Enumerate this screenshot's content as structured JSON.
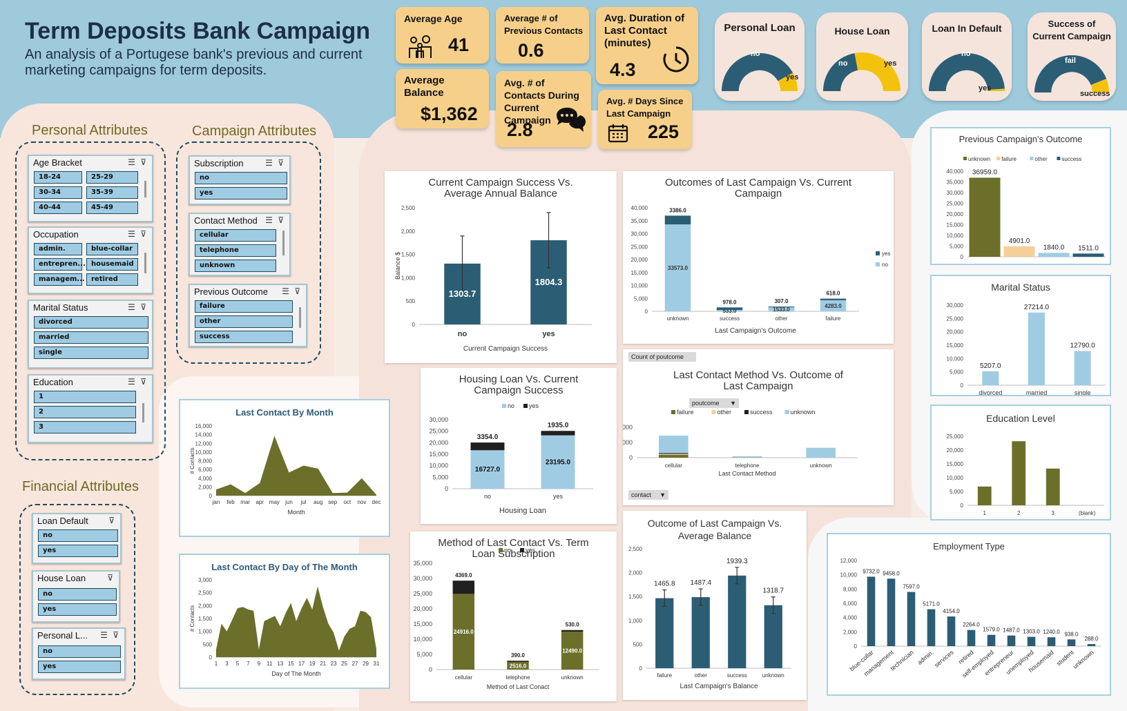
{
  "header": {
    "title": "Term Deposits Bank Campaign",
    "subtitle": "An analysis of a Portugese bank's previous and current marketing campaigns for term deposits."
  },
  "kpis": {
    "avg_age": {
      "label": "Average Age",
      "value": "41"
    },
    "avg_prev_contacts": {
      "label": "Average # of Previous Contacts",
      "value": "0.6"
    },
    "avg_duration": {
      "label": "Avg. Duration of Last Contact (minutes)",
      "value": "4.3"
    },
    "avg_balance": {
      "label": "Average Balance",
      "value": "$1,362"
    },
    "avg_contacts_current": {
      "label": "Avg. # of Contacts During Current Campaign",
      "value": "2.8"
    },
    "avg_days_since": {
      "label": "Avg. # Days Since Last Campaign",
      "value": "225"
    }
  },
  "gauges": [
    {
      "title": "Personal Loan",
      "left_label": "no",
      "right_label": "yes",
      "fraction": 0.16,
      "colors": [
        "#2b5e75",
        "#f4c20d"
      ]
    },
    {
      "title": "House Loan",
      "left_label": "no",
      "right_label": "yes",
      "fraction": 0.56,
      "colors": [
        "#2b5e75",
        "#f4c20d"
      ]
    },
    {
      "title": "Loan In Default",
      "left_label": "no",
      "right_label": "yes",
      "fraction": 0.02,
      "colors": [
        "#2b5e75",
        "#f4c20d"
      ]
    },
    {
      "title": "Success of Current Campaign",
      "left_label": "fail",
      "right_label": "success",
      "fraction": 0.12,
      "colors": [
        "#2b5e75",
        "#f4c20d"
      ]
    }
  ],
  "sections": {
    "personal": "Personal Attributes",
    "campaign": "Campaign Attributes",
    "financial": "Financial Attributes"
  },
  "slicers": {
    "age": {
      "title": "Age Bracket",
      "items": [
        "18-24",
        "25-29",
        "30-34",
        "35-39",
        "40-44",
        "45-49"
      ]
    },
    "occupation": {
      "title": "Occupation",
      "items": [
        "admin.",
        "blue-collar",
        "entrepren...",
        "housemaid",
        "managem...",
        "retired"
      ]
    },
    "marital": {
      "title": "Marital Status",
      "items": [
        "divorced",
        "married",
        "single"
      ]
    },
    "education": {
      "title": "Education",
      "items": [
        "1",
        "2",
        "3"
      ]
    },
    "subscription": {
      "title": "Subscription",
      "items": [
        "no",
        "yes"
      ]
    },
    "contact": {
      "title": "Contact Method",
      "items": [
        "cellular",
        "telephone",
        "unknown"
      ]
    },
    "prev_outcome": {
      "title": "Previous Outcome",
      "items": [
        "failure",
        "other",
        "success"
      ]
    },
    "loan_default": {
      "title": "Loan Default",
      "items": [
        "no",
        "yes"
      ]
    },
    "house_loan": {
      "title": "House Loan",
      "items": [
        "no",
        "yes"
      ]
    },
    "personal_loan": {
      "title": "Personal L...",
      "items": [
        "no",
        "yes"
      ]
    }
  },
  "pivot_buttons": {
    "count_field": "Count of poutcome",
    "filter_poutcome": "poutcome",
    "filter_contact": "contact"
  },
  "chart_data": [
    {
      "id": "balance_success",
      "type": "bar",
      "title": "Current Campaign Success Vs. Average Annual Balance",
      "xlabel": "Current Campaign Success",
      "ylabel": "Balance $",
      "categories": [
        "no",
        "yes"
      ],
      "values": [
        1303.7,
        1804.3
      ],
      "ylim": [
        0,
        2500
      ],
      "yticks": [
        "0",
        "500",
        "1,000",
        "1,500",
        "2,000",
        "2,500"
      ],
      "error_bars": true
    },
    {
      "id": "last_vs_current",
      "type": "bar",
      "title": "Outcomes of Last Campaign Vs. Current Campaign",
      "xlabel": "Last Campaign's Outcome",
      "categories": [
        "unknown",
        "success",
        "other",
        "failure"
      ],
      "series": [
        {
          "name": "no",
          "values": [
            33573,
            533,
            1533,
            4283
          ]
        },
        {
          "name": "yes",
          "values": [
            3386,
            978,
            307,
            618
          ]
        }
      ],
      "ylim": [
        0,
        40000
      ],
      "yticks": [
        "0",
        "5,000",
        "10,000",
        "15,000",
        "20,000",
        "25,000",
        "30,000",
        "35,000",
        "40,000"
      ],
      "legend": "right"
    },
    {
      "id": "housing",
      "type": "bar",
      "title": "Housing Loan Vs. Current Campaign Success",
      "xlabel": "Housing Loan",
      "categories": [
        "no",
        "yes"
      ],
      "series": [
        {
          "name": "no",
          "values": [
            16727,
            23195
          ]
        },
        {
          "name": "yes",
          "values": [
            3354,
            1935
          ]
        }
      ],
      "ylim": [
        0,
        30000
      ],
      "yticks": [
        "0",
        "5,000",
        "10,000",
        "15,000",
        "20,000",
        "25,000",
        "30,000"
      ],
      "legend": "top"
    },
    {
      "id": "contact_vs_outcome",
      "type": "bar",
      "title": "Last Contact Method Vs. Outcome of Last Campaign",
      "xlabel": "Last Contact Method",
      "categories": [
        "cellular",
        "telephone",
        "unknown"
      ],
      "series": [
        {
          "name": "failure",
          "values": [
            3700,
            300,
            0
          ]
        },
        {
          "name": "other",
          "values": [
            1200,
            200,
            0
          ]
        },
        {
          "name": "success",
          "values": [
            1100,
            100,
            0
          ]
        },
        {
          "name": "unknown",
          "values": [
            23000,
            1300,
            13000
          ]
        }
      ],
      "ylim": [
        0,
        40000
      ],
      "yticks": [
        "0",
        "20,000",
        "40,000"
      ],
      "legend": "top"
    },
    {
      "id": "method_subscription",
      "type": "bar",
      "title": "Method of Last Contact Vs. Term Loan Subscription",
      "xlabel": "Method of Last Conact",
      "categories": [
        "cellular",
        "telephone",
        "unknown"
      ],
      "series": [
        {
          "name": "no",
          "values": [
            24916,
            2516,
            12490
          ]
        },
        {
          "name": "yes",
          "values": [
            4369,
            390,
            530
          ]
        }
      ],
      "ylim": [
        0,
        35000
      ],
      "yticks": [
        "0",
        "5,000",
        "10,000",
        "15,000",
        "20,000",
        "25,000",
        "30,000",
        "35,000"
      ],
      "legend": "top"
    },
    {
      "id": "outcome_balance",
      "type": "bar",
      "title": "Outcome of Last Campaign Vs. Average Balance",
      "xlabel": "Last Campaign's Balance",
      "categories": [
        "failure",
        "other",
        "success",
        "unknown"
      ],
      "values": [
        1465.8,
        1487.4,
        1939.3,
        1318.7
      ],
      "ylim": [
        0,
        2500
      ],
      "yticks": [
        "0",
        "500",
        "1,000",
        "1,500",
        "2,000",
        "2,500"
      ],
      "error_bars": true
    },
    {
      "id": "by_month",
      "type": "area",
      "title": "Last Contact By Month",
      "xlabel": "Month",
      "ylabel": "# Contacts",
      "categories": [
        "jan",
        "feb",
        "mar",
        "apr",
        "may",
        "jun",
        "jul",
        "aug",
        "sep",
        "oct",
        "nov",
        "dec"
      ],
      "values": [
        1400,
        2600,
        600,
        2900,
        13700,
        5300,
        6900,
        6200,
        600,
        700,
        4000,
        200
      ],
      "ylim": [
        0,
        16000
      ],
      "yticks": [
        "0",
        "2,000",
        "4,000",
        "6,000",
        "8,000",
        "10,000",
        "12,000",
        "14,000",
        "16,000"
      ]
    },
    {
      "id": "by_day",
      "type": "area",
      "title": "Last Contact By Day of The Month",
      "xlabel": "Day of The Month",
      "ylabel": "# Contacts",
      "x": [
        1,
        2,
        3,
        4,
        5,
        6,
        7,
        8,
        9,
        10,
        11,
        12,
        13,
        14,
        15,
        16,
        17,
        18,
        19,
        20,
        21,
        22,
        23,
        24,
        25,
        26,
        27,
        28,
        29,
        30,
        31
      ],
      "values": [
        300,
        1300,
        1000,
        1450,
        1900,
        1950,
        1850,
        1800,
        300,
        1400,
        1500,
        1600,
        1200,
        1700,
        2100,
        1400,
        1900,
        2300,
        1850,
        2750,
        1950,
        1300,
        950,
        250,
        800,
        1100,
        1200,
        1800,
        1750,
        1550,
        300
      ],
      "ylim": [
        0,
        3000
      ],
      "xticks": [
        "1",
        "3",
        "5",
        "7",
        "9",
        "11",
        "13",
        "15",
        "17",
        "19",
        "21",
        "23",
        "25",
        "27",
        "29",
        "31"
      ],
      "yticks": [
        "0",
        "500",
        "1,000",
        "1,500",
        "2,000",
        "2,500",
        "3,000"
      ]
    },
    {
      "id": "prev_outcome",
      "type": "bar",
      "title": "Previous Campaign's Outcome",
      "categories": [
        "unknown",
        "failure",
        "other",
        "success"
      ],
      "values": [
        36959.0,
        4901.0,
        1840.0,
        1511.0
      ],
      "labels": [
        "36959.0",
        "4901.0",
        "1840.0",
        "1511.0"
      ],
      "colors": [
        "#6b6f2a",
        "#f5cf9a",
        "#9fcce3",
        "#2b5e75"
      ],
      "ylim": [
        0,
        40000
      ],
      "yticks": [
        "0",
        "5,000",
        "10,000",
        "15,000",
        "20,000",
        "25,000",
        "30,000",
        "35,000",
        "40,000"
      ],
      "legend": "top"
    },
    {
      "id": "marital",
      "type": "bar",
      "title": "Marital Status",
      "categories": [
        "divorced",
        "married",
        "single"
      ],
      "values": [
        5207.0,
        27214.0,
        12790.0
      ],
      "labels": [
        "5207.0",
        "27214.0",
        "12790.0"
      ],
      "ylim": [
        0,
        30000
      ],
      "yticks": [
        "0",
        "5,000",
        "10,000",
        "15,000",
        "20,000",
        "25,000",
        "30,000"
      ]
    },
    {
      "id": "education",
      "type": "bar",
      "title": "Education Level",
      "categories": [
        "1",
        "2",
        "3",
        "(blank)"
      ],
      "values": [
        6800,
        23200,
        13300,
        0
      ],
      "ylim": [
        0,
        25000
      ],
      "yticks": [
        "0",
        "5,000",
        "10,000",
        "15,000",
        "20,000",
        "25,000"
      ]
    },
    {
      "id": "employment",
      "type": "bar",
      "title": "Employment Type",
      "categories": [
        "blue-collar",
        "management",
        "technician",
        "admin.",
        "services",
        "retired",
        "self-employed",
        "entrepreneur",
        "unemployed",
        "housemaid",
        "student",
        "unknown"
      ],
      "values": [
        9732.0,
        9458.0,
        7597.0,
        5171.0,
        4154.0,
        2264.0,
        1579.0,
        1487.0,
        1303.0,
        1240.0,
        938.0,
        288.0
      ],
      "labels": [
        "9732.0",
        "9458.0",
        "7597.0",
        "5171.0",
        "4154.0",
        "2264.0",
        "1579.0",
        "1487.0",
        "1303.0",
        "1240.0",
        "938.0",
        "288.0"
      ],
      "ylim": [
        0,
        12000
      ],
      "yticks": [
        "0",
        "2,000",
        "4,000",
        "6,000",
        "8,000",
        "10,000",
        "12,000"
      ]
    }
  ]
}
